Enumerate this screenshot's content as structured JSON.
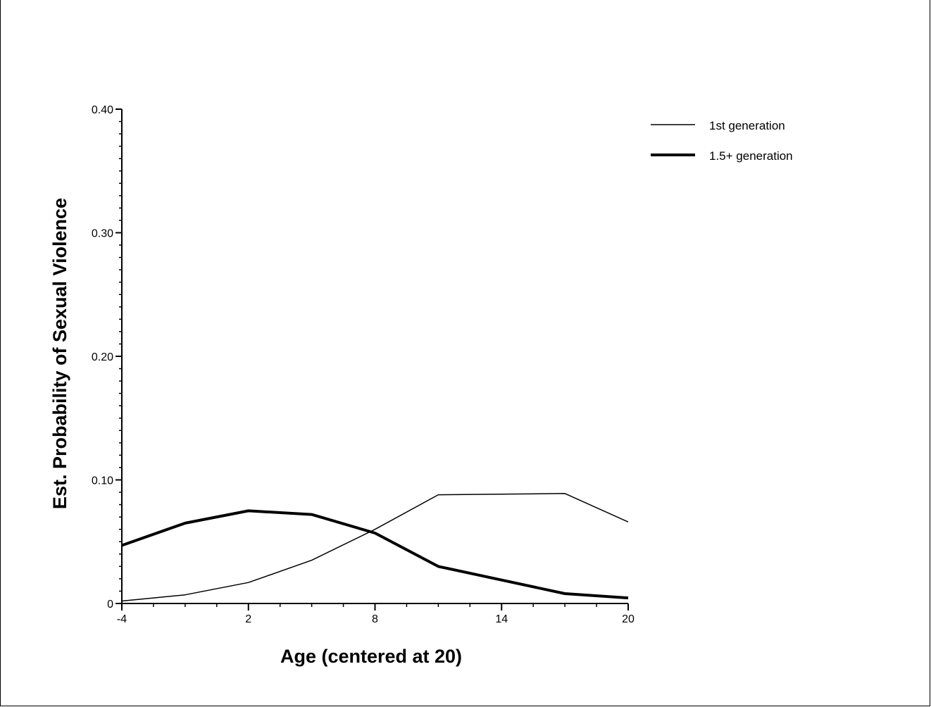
{
  "chart_data": {
    "type": "line",
    "title": "",
    "xlabel": "Age (centered at 20)",
    "ylabel": "Est. Probability of Sexual Violence",
    "xlim": [
      -4,
      20
    ],
    "ylim": [
      0,
      0.4
    ],
    "x_ticks": [
      -4,
      2,
      8,
      14,
      20
    ],
    "x_tick_labels": [
      "-4",
      "2",
      "8",
      "14",
      "20"
    ],
    "x_minor_step": 1.5,
    "y_ticks": [
      0,
      0.1,
      0.2,
      0.3,
      0.4
    ],
    "y_tick_labels": [
      "0",
      "0.10",
      "0.20",
      "0.30",
      "0.40"
    ],
    "y_minor_step": 0.01,
    "grid": false,
    "legend_position": "top-right",
    "series": [
      {
        "name": "1st generation",
        "line_weight": "thin",
        "color": "#000000",
        "x": [
          -4,
          -1,
          2,
          5,
          8,
          11,
          14,
          17,
          20
        ],
        "y": [
          0.002,
          0.007,
          0.017,
          0.035,
          0.06,
          0.088,
          0.0885,
          0.089,
          0.066
        ]
      },
      {
        "name": "1.5+ generation",
        "line_weight": "thick",
        "color": "#000000",
        "x": [
          -4,
          -1,
          2,
          5,
          8,
          11,
          14,
          17,
          20
        ],
        "y": [
          0.047,
          0.065,
          0.075,
          0.072,
          0.057,
          0.03,
          0.019,
          0.008,
          0.0045
        ]
      }
    ]
  }
}
